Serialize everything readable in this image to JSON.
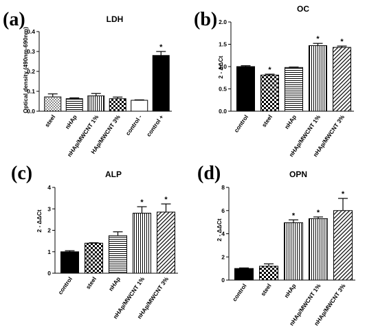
{
  "chart_data": [
    {
      "type": "bar",
      "panel_label": "(a)",
      "title": "LDH",
      "ylabel": "Optical density (490nm-690nm)",
      "ylim": [
        0,
        0.4
      ],
      "yticks": [
        0.0,
        0.1,
        0.2,
        0.3,
        0.4
      ],
      "tick_labels": [
        "0.0",
        "0.1",
        "0.2",
        "0.3",
        "0.4"
      ],
      "categories": [
        "steel",
        "nHAp",
        "nHAp/MWCNT 1%",
        "HAp/MWCNT 3%",
        "control -",
        "control +"
      ],
      "values": [
        0.072,
        0.063,
        0.077,
        0.063,
        0.055,
        0.28
      ],
      "errors": [
        0.015,
        0.004,
        0.012,
        0.008,
        0.002,
        0.02
      ],
      "significant": [
        false,
        false,
        false,
        false,
        false,
        true
      ],
      "significance_marker": "*",
      "fills": [
        "dots",
        "hlines",
        "vlines",
        "checker",
        "white",
        "solid"
      ]
    },
    {
      "type": "bar",
      "panel_label": "(b)",
      "title": "OC",
      "ylabel": "2 - ΔΔCt",
      "ylim": [
        0,
        2.0
      ],
      "yticks": [
        0.0,
        0.5,
        1.0,
        1.5,
        2.0
      ],
      "tick_labels": [
        "0.0",
        "0.5",
        "1.0",
        "1.5",
        "2.0"
      ],
      "categories": [
        "control",
        "steel",
        "nHAp",
        "nHAp/MWCNT 1%",
        "nHAp/MWCNT 3%"
      ],
      "values": [
        1.0,
        0.81,
        0.98,
        1.47,
        1.43
      ],
      "errors": [
        0.02,
        0.02,
        0.01,
        0.05,
        0.03
      ],
      "significant": [
        false,
        true,
        false,
        true,
        true
      ],
      "significance_marker": "*",
      "fills": [
        "solid",
        "checker",
        "hlines",
        "vlines",
        "diag"
      ]
    },
    {
      "type": "bar",
      "panel_label": "(c)",
      "title": "ALP",
      "ylabel": "2 - ΔΔCt",
      "ylim": [
        0,
        4
      ],
      "yticks": [
        0,
        1,
        2,
        3,
        4
      ],
      "tick_labels": [
        "0",
        "1",
        "2",
        "3",
        "4"
      ],
      "categories": [
        "control",
        "steel",
        "nHAp",
        "nHAp/MWCNT 1%",
        "nHAp/MWCNT 3%"
      ],
      "values": [
        1.0,
        1.4,
        1.75,
        2.8,
        2.85
      ],
      "errors": [
        0.05,
        0.02,
        0.18,
        0.3,
        0.38
      ],
      "significant": [
        false,
        false,
        false,
        true,
        true
      ],
      "significance_marker": "*",
      "fills": [
        "solid",
        "checker",
        "hlines",
        "vlines",
        "diag"
      ]
    },
    {
      "type": "bar",
      "panel_label": "(d)",
      "title": "OPN",
      "ylabel": "2 - ΔΔCt",
      "ylim": [
        0,
        8
      ],
      "yticks": [
        0,
        2,
        4,
        6,
        8
      ],
      "tick_labels": [
        "0",
        "2",
        "4",
        "6",
        "8"
      ],
      "categories": [
        "control",
        "steel",
        "nHAp",
        "nHAp/MWCNT 1%",
        "nHAp/MWCNT 3%"
      ],
      "values": [
        1.0,
        1.2,
        4.95,
        5.3,
        6.0
      ],
      "errors": [
        0.05,
        0.2,
        0.25,
        0.15,
        1.05
      ],
      "significant": [
        false,
        false,
        true,
        true,
        true
      ],
      "significance_marker": "*",
      "fills": [
        "solid",
        "checker",
        "vlines",
        "vlines",
        "diag"
      ]
    }
  ]
}
